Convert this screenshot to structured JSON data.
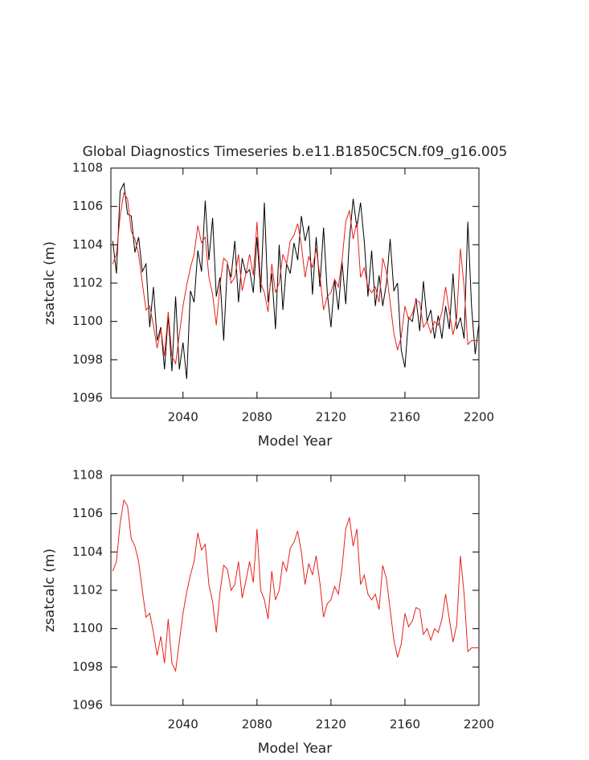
{
  "chart_data": [
    {
      "type": "line",
      "title": "Global Diagnostics Timeseries b.e11.B1850C5CN.f09_g16.005",
      "xlabel": "Model Year",
      "ylabel": "zsatcalc (m)",
      "xlim": [
        2001,
        2200
      ],
      "xticks": [
        2040,
        2080,
        2120,
        2160,
        2200
      ],
      "ylim": [
        1096,
        1108
      ],
      "yticks": [
        1096,
        1098,
        1100,
        1102,
        1104,
        1106,
        1108
      ],
      "x": [
        2002,
        2004,
        2006,
        2008,
        2010,
        2012,
        2014,
        2016,
        2018,
        2020,
        2022,
        2024,
        2026,
        2028,
        2030,
        2032,
        2034,
        2036,
        2038,
        2040,
        2042,
        2044,
        2046,
        2048,
        2050,
        2052,
        2054,
        2056,
        2058,
        2060,
        2062,
        2064,
        2066,
        2068,
        2070,
        2072,
        2074,
        2076,
        2078,
        2080,
        2082,
        2084,
        2086,
        2088,
        2090,
        2092,
        2094,
        2096,
        2098,
        2100,
        2102,
        2104,
        2106,
        2108,
        2110,
        2112,
        2114,
        2116,
        2118,
        2120,
        2122,
        2124,
        2126,
        2128,
        2130,
        2132,
        2134,
        2136,
        2138,
        2140,
        2142,
        2144,
        2146,
        2148,
        2150,
        2152,
        2154,
        2156,
        2158,
        2160,
        2162,
        2164,
        2166,
        2168,
        2170,
        2172,
        2174,
        2176,
        2178,
        2180,
        2182,
        2184,
        2186,
        2188,
        2190,
        2192,
        2194,
        2196,
        2198,
        2200
      ],
      "series": [
        {
          "color": "#000000",
          "values": [
            1104.2,
            1102.5,
            1106.8,
            1107.2,
            1105.6,
            1105.5,
            1103.6,
            1104.4,
            1102.6,
            1103.0,
            1099.7,
            1101.8,
            1099.0,
            1099.7,
            1097.5,
            1100.3,
            1097.4,
            1101.3,
            1097.5,
            1098.9,
            1097.0,
            1101.6,
            1101.0,
            1103.7,
            1102.6,
            1106.3,
            1103.2,
            1105.4,
            1101.3,
            1102.3,
            1099.0,
            1103.0,
            1102.3,
            1104.2,
            1101.0,
            1103.3,
            1102.5,
            1102.7,
            1101.5,
            1104.4,
            1101.5,
            1106.2,
            1101.0,
            1102.5,
            1099.6,
            1104.0,
            1100.6,
            1103.0,
            1102.5,
            1104.1,
            1103.2,
            1105.5,
            1104.2,
            1105.0,
            1101.4,
            1104.4,
            1101.8,
            1104.9,
            1101.5,
            1099.7,
            1102.2,
            1100.6,
            1103.1,
            1100.9,
            1104.3,
            1106.4,
            1104.9,
            1106.2,
            1104.2,
            1101.3,
            1103.7,
            1100.8,
            1102.4,
            1100.8,
            1102.0,
            1104.3,
            1101.6,
            1102.0,
            1098.5,
            1097.6,
            1100.2,
            1100.0,
            1101.2,
            1099.5,
            1102.1,
            1100.0,
            1100.6,
            1099.1,
            1100.3,
            1099.1,
            1100.8,
            1099.6,
            1102.5,
            1099.6,
            1100.2,
            1099.1,
            1105.2,
            1100.8,
            1098.3,
            1099.9
          ]
        },
        {
          "color": "#e8201a",
          "values": [
            1103.0,
            1103.5,
            1105.5,
            1106.7,
            1106.4,
            1104.7,
            1104.3,
            1103.5,
            1102.0,
            1100.6,
            1100.8,
            1099.8,
            1098.6,
            1099.6,
            1098.2,
            1100.5,
            1098.2,
            1097.8,
            1099.3,
            1100.8,
            1101.9,
            1102.8,
            1103.5,
            1105.0,
            1104.1,
            1104.4,
            1102.3,
            1101.4,
            1099.8,
            1101.9,
            1103.3,
            1103.1,
            1102.0,
            1102.3,
            1103.5,
            1101.6,
            1102.5,
            1103.5,
            1102.4,
            1105.2,
            1102.0,
            1101.5,
            1100.5,
            1103.0,
            1101.5,
            1102.0,
            1103.5,
            1103.0,
            1104.2,
            1104.5,
            1105.1,
            1104.0,
            1102.3,
            1103.4,
            1102.8,
            1103.8,
            1102.4,
            1100.6,
            1101.3,
            1101.5,
            1102.2,
            1101.8,
            1103.2,
            1105.2,
            1105.8,
            1104.3,
            1105.2,
            1102.3,
            1102.8,
            1101.8,
            1101.5,
            1101.8,
            1101.0,
            1103.3,
            1102.6,
            1101.0,
            1099.4,
            1098.5,
            1099.2,
            1100.8,
            1100.1,
            1100.4,
            1101.1,
            1101.0,
            1099.7,
            1100.0,
            1099.4,
            1100.0,
            1099.8,
            1100.5,
            1101.8,
            1100.5,
            1099.3,
            1100.2,
            1103.8,
            1101.8,
            1098.8,
            1099.0,
            1099.0,
            1099.0
          ]
        }
      ]
    },
    {
      "type": "line",
      "xlabel": "Model Year",
      "ylabel": "zsatcalc (m)",
      "xlim": [
        2001,
        2200
      ],
      "xticks": [
        2040,
        2080,
        2120,
        2160,
        2200
      ],
      "ylim": [
        1096,
        1108
      ],
      "yticks": [
        1096,
        1098,
        1100,
        1102,
        1104,
        1106,
        1108
      ],
      "x": [
        2002,
        2004,
        2006,
        2008,
        2010,
        2012,
        2014,
        2016,
        2018,
        2020,
        2022,
        2024,
        2026,
        2028,
        2030,
        2032,
        2034,
        2036,
        2038,
        2040,
        2042,
        2044,
        2046,
        2048,
        2050,
        2052,
        2054,
        2056,
        2058,
        2060,
        2062,
        2064,
        2066,
        2068,
        2070,
        2072,
        2074,
        2076,
        2078,
        2080,
        2082,
        2084,
        2086,
        2088,
        2090,
        2092,
        2094,
        2096,
        2098,
        2100,
        2102,
        2104,
        2106,
        2108,
        2110,
        2112,
        2114,
        2116,
        2118,
        2120,
        2122,
        2124,
        2126,
        2128,
        2130,
        2132,
        2134,
        2136,
        2138,
        2140,
        2142,
        2144,
        2146,
        2148,
        2150,
        2152,
        2154,
        2156,
        2158,
        2160,
        2162,
        2164,
        2166,
        2168,
        2170,
        2172,
        2174,
        2176,
        2178,
        2180,
        2182,
        2184,
        2186,
        2188,
        2190,
        2192,
        2194,
        2196,
        2198,
        2200
      ],
      "series": [
        {
          "color": "#e8201a",
          "values": [
            1103.0,
            1103.5,
            1105.5,
            1106.7,
            1106.4,
            1104.7,
            1104.3,
            1103.5,
            1102.0,
            1100.6,
            1100.8,
            1099.8,
            1098.6,
            1099.6,
            1098.2,
            1100.5,
            1098.2,
            1097.8,
            1099.3,
            1100.8,
            1101.9,
            1102.8,
            1103.5,
            1105.0,
            1104.1,
            1104.4,
            1102.3,
            1101.4,
            1099.8,
            1101.9,
            1103.3,
            1103.1,
            1102.0,
            1102.3,
            1103.5,
            1101.6,
            1102.5,
            1103.5,
            1102.4,
            1105.2,
            1102.0,
            1101.5,
            1100.5,
            1103.0,
            1101.5,
            1102.0,
            1103.5,
            1103.0,
            1104.2,
            1104.5,
            1105.1,
            1104.0,
            1102.3,
            1103.4,
            1102.8,
            1103.8,
            1102.4,
            1100.6,
            1101.3,
            1101.5,
            1102.2,
            1101.8,
            1103.2,
            1105.2,
            1105.8,
            1104.3,
            1105.2,
            1102.3,
            1102.8,
            1101.8,
            1101.5,
            1101.8,
            1101.0,
            1103.3,
            1102.6,
            1101.0,
            1099.4,
            1098.5,
            1099.2,
            1100.8,
            1100.1,
            1100.4,
            1101.1,
            1101.0,
            1099.7,
            1100.0,
            1099.4,
            1100.0,
            1099.8,
            1100.5,
            1101.8,
            1100.5,
            1099.3,
            1100.2,
            1103.8,
            1101.8,
            1098.8,
            1099.0,
            1099.0,
            1099.0
          ]
        }
      ]
    }
  ]
}
